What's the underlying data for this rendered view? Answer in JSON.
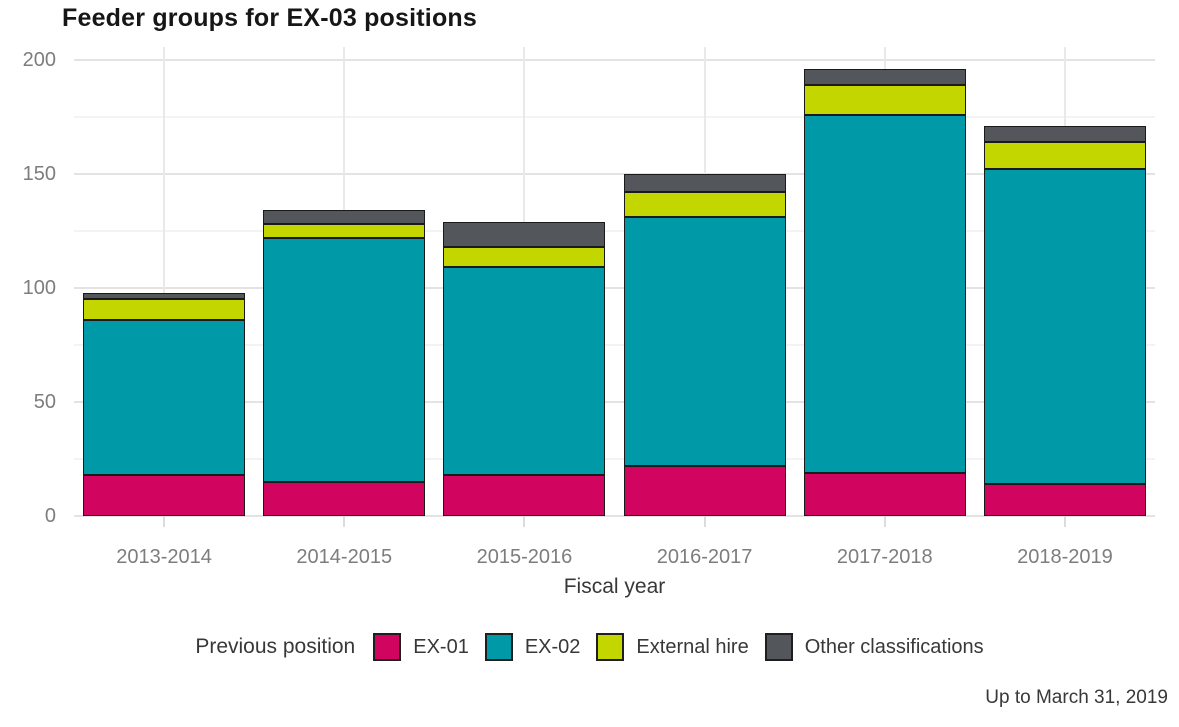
{
  "chart_data": {
    "type": "bar",
    "stacked": true,
    "title": "Feeder groups for EX-03 positions",
    "xlabel": "Fiscal year",
    "ylabel": "",
    "ylim": [
      0,
      200
    ],
    "yticks": [
      0,
      50,
      100,
      150,
      200
    ],
    "minor_gridlines": [
      25,
      75,
      125,
      175
    ],
    "grid": true,
    "legend_position": "bottom",
    "legend_title": "Previous position",
    "categories": [
      "2013-2014",
      "2014-2015",
      "2015-2016",
      "2016-2017",
      "2017-2018",
      "2018-2019"
    ],
    "series": [
      {
        "name": "EX-01",
        "color": "#d10560",
        "values": [
          18,
          15,
          18,
          22,
          19,
          14
        ]
      },
      {
        "name": "EX-02",
        "color": "#0099a8",
        "values": [
          68,
          107,
          91,
          109,
          157,
          138
        ]
      },
      {
        "name": "External hire",
        "color": "#c4d600",
        "values": [
          9,
          6,
          9,
          11,
          13,
          12
        ]
      },
      {
        "name": "Other classifications",
        "color": "#53565a",
        "values": [
          3,
          6,
          11,
          8,
          7,
          7
        ]
      }
    ],
    "totals": [
      98,
      134,
      129,
      150,
      196,
      171
    ],
    "caption": "Up to March 31, 2019",
    "colors": {
      "background": "#ffffff",
      "grid_major": "#e3e3e3",
      "grid_minor": "#f3f3f3",
      "bar_outline": "#1a1a1a",
      "axis_text": "#7d7d7d",
      "label_text": "#383838"
    }
  }
}
